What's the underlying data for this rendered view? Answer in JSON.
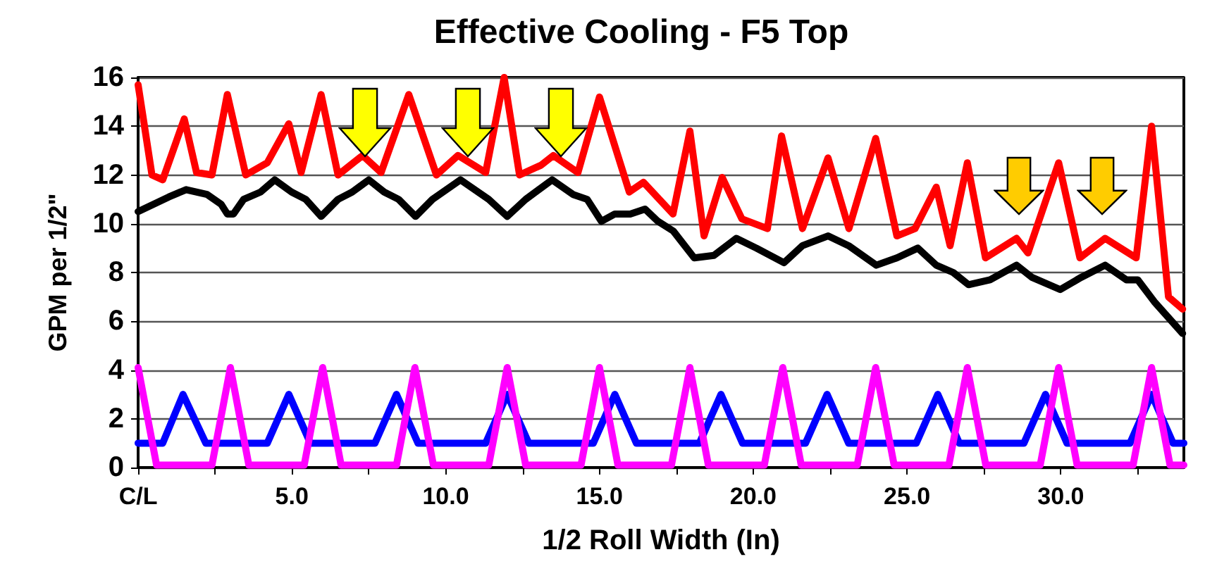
{
  "chart_data": {
    "type": "line",
    "title": "Effective Cooling - F5 Top",
    "xlabel": "1/2 Roll Width (In)",
    "ylabel": "GPM per 1/2\"",
    "xlim": [
      0,
      34
    ],
    "xticks": [
      {
        "value": 0,
        "label": "C/L"
      },
      {
        "value": 2.5,
        "label": null
      },
      {
        "value": 5,
        "label": "5.0"
      },
      {
        "value": 7.5,
        "label": null
      },
      {
        "value": 10,
        "label": "10.0"
      },
      {
        "value": 12.5,
        "label": null
      },
      {
        "value": 15,
        "label": "15.0"
      },
      {
        "value": 17.5,
        "label": null
      },
      {
        "value": 20,
        "label": "20.0"
      },
      {
        "value": 22.5,
        "label": null
      },
      {
        "value": 25,
        "label": "25.0"
      },
      {
        "value": 27.5,
        "label": null
      },
      {
        "value": 30,
        "label": "30.0"
      },
      {
        "value": 32.5,
        "label": null
      }
    ],
    "ylim": [
      0,
      16
    ],
    "yticks": [
      0,
      2,
      4,
      6,
      8,
      10,
      12,
      14,
      16
    ],
    "grid": "y",
    "marker": "none",
    "series": [
      {
        "color": "#ff0000",
        "x": [
          0,
          0.45,
          0.8,
          1.5,
          1.9,
          2.4,
          2.9,
          3.5,
          4.2,
          4.9,
          5.3,
          5.95,
          6.5,
          7.3,
          7.9,
          8.8,
          9.7,
          10.4,
          11.3,
          11.9,
          12.4,
          13.1,
          13.5,
          14.3,
          15.0,
          15.97,
          16.43,
          17.39,
          17.94,
          18.4,
          18.99,
          19.63,
          20.46,
          20.92,
          21.6,
          22.43,
          23.11,
          23.98,
          24.67,
          25.26,
          25.95,
          26.4,
          26.96,
          27.55,
          28.56,
          28.93,
          29.93,
          30.62,
          31.44,
          32.45,
          32.95,
          33.5,
          33.96
        ],
        "values": [
          15.7,
          12.0,
          11.8,
          14.3,
          12.1,
          12.0,
          15.3,
          12.0,
          12.5,
          14.1,
          12.1,
          15.3,
          12.0,
          12.8,
          12.1,
          15.3,
          12.0,
          12.8,
          12.1,
          16,
          12.0,
          12.4,
          12.8,
          12.1,
          15.2,
          11.3,
          11.7,
          10.4,
          13.8,
          9.5,
          11.9,
          10.2,
          9.8,
          13.6,
          9.8,
          12.7,
          9.8,
          13.5,
          9.5,
          9.8,
          11.5,
          9.1,
          12.5,
          8.6,
          9.4,
          8.8,
          12.5,
          8.6,
          9.4,
          8.6,
          14.0,
          7.0,
          6.5
        ]
      },
      {
        "color": "#000000",
        "x": [
          0,
          1.0,
          1.56,
          2.24,
          2.7,
          2.9,
          3.1,
          3.43,
          3.98,
          4.44,
          4.99,
          5.45,
          5.95,
          6.5,
          6.96,
          7.5,
          8.0,
          8.47,
          9.02,
          9.57,
          10.48,
          11.4,
          12.0,
          12.6,
          13.46,
          14.14,
          14.6,
          15.06,
          15.5,
          16.0,
          16.48,
          16.9,
          17.4,
          18.08,
          18.72,
          19.45,
          20.1,
          21.0,
          21.6,
          22.43,
          23.1,
          24.0,
          24.67,
          25.35,
          25.95,
          26.5,
          27.0,
          27.7,
          28.56,
          29.06,
          29.98,
          30.66,
          31.44,
          32.13,
          32.5,
          33.04,
          33.96
        ],
        "values": [
          10.5,
          11.1,
          11.4,
          11.2,
          10.8,
          10.4,
          10.4,
          11.0,
          11.3,
          11.8,
          11.3,
          11.0,
          10.3,
          11.0,
          11.3,
          11.8,
          11.3,
          11.0,
          10.3,
          11.0,
          11.8,
          11.0,
          10.3,
          11.0,
          11.8,
          11.2,
          11.0,
          10.1,
          10.4,
          10.4,
          10.6,
          10.1,
          9.7,
          8.6,
          8.7,
          9.4,
          9.0,
          8.4,
          9.1,
          9.5,
          9.1,
          8.3,
          8.6,
          9.0,
          8.3,
          8.0,
          7.5,
          7.7,
          8.3,
          7.8,
          7.3,
          7.8,
          8.3,
          7.7,
          7.7,
          6.8,
          5.5
        ]
      },
      {
        "color": "#0000ff",
        "x": [
          0,
          0.8,
          1.46,
          2.2,
          4.2,
          4.9,
          5.6,
          7.7,
          8.4,
          9.1,
          11.3,
          12.0,
          12.7,
          14.8,
          15.5,
          16.2,
          18.25,
          18.95,
          19.65,
          21.7,
          22.4,
          23.1,
          25.3,
          26.0,
          26.7,
          28.8,
          29.5,
          30.2,
          32.25,
          32.95,
          33.65,
          34
        ],
        "values": [
          1.0,
          1.0,
          3.0,
          1.0,
          1.0,
          3.0,
          1.0,
          1.0,
          3.0,
          1.0,
          1.0,
          3.0,
          1.0,
          1.0,
          3.0,
          1.0,
          1.0,
          3.0,
          1.0,
          1.0,
          3.0,
          1.0,
          1.0,
          3.0,
          1.0,
          1.0,
          3.0,
          1.0,
          1.0,
          3.0,
          1.0,
          1.0
        ]
      },
      {
        "color": "#ff00ff",
        "x": [
          0,
          0.6,
          2.4,
          3.0,
          3.6,
          5.4,
          6.0,
          6.6,
          8.4,
          9.0,
          9.6,
          11.4,
          12.0,
          12.6,
          14.4,
          15.0,
          15.6,
          17.34,
          17.94,
          18.54,
          20.36,
          20.96,
          21.56,
          23.38,
          23.98,
          24.58,
          26.36,
          26.96,
          27.56,
          29.33,
          29.93,
          30.53,
          32.35,
          32.95,
          33.55,
          34
        ],
        "values": [
          4.1,
          0.1,
          0.1,
          4.1,
          0.1,
          0.1,
          4.1,
          0.1,
          0.1,
          4.1,
          0.1,
          0.1,
          4.1,
          0.1,
          0.1,
          4.1,
          0.1,
          0.1,
          4.1,
          0.1,
          0.1,
          4.1,
          0.1,
          0.1,
          4.1,
          0.1,
          0.1,
          4.1,
          0.1,
          0.1,
          4.1,
          0.1,
          0.1,
          4.1,
          0.1,
          0.1
        ]
      }
    ]
  }
}
